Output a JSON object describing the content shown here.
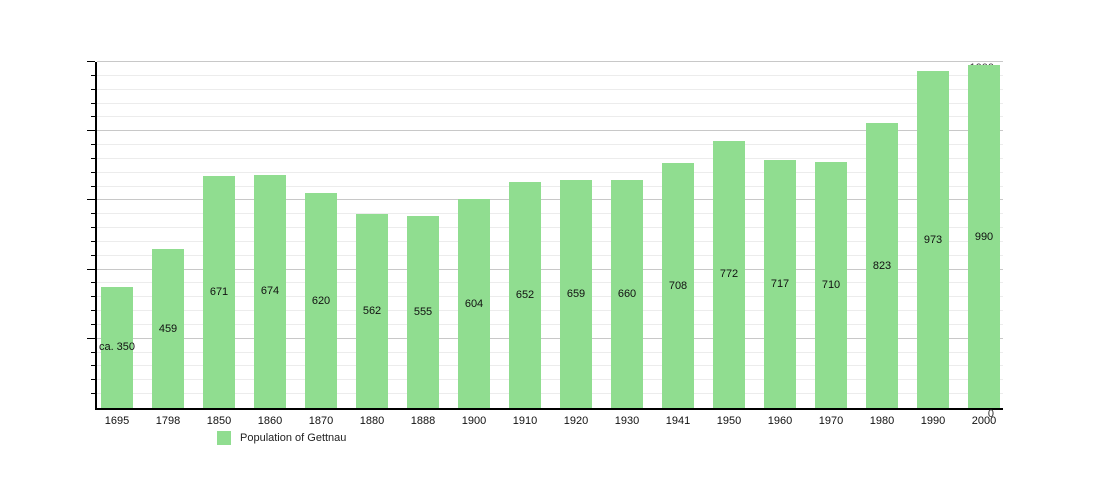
{
  "chart_data": {
    "type": "bar",
    "title": "",
    "legend": "Population of Gettnau",
    "legend_position": "bottom-left",
    "categories": [
      "1695",
      "1798",
      "1850",
      "1860",
      "1870",
      "1880",
      "1888",
      "1900",
      "1910",
      "1920",
      "1930",
      "1941",
      "1950",
      "1960",
      "1970",
      "1980",
      "1990",
      "2000"
    ],
    "values": [
      350,
      459,
      671,
      674,
      620,
      562,
      555,
      604,
      652,
      659,
      660,
      708,
      772,
      717,
      710,
      823,
      973,
      990
    ],
    "bar_labels": [
      "ca. 350",
      "459",
      "671",
      "674",
      "620",
      "562",
      "555",
      "604",
      "652",
      "659",
      "660",
      "708",
      "772",
      "717",
      "710",
      "823",
      "973",
      "990"
    ],
    "xlabel": "",
    "ylabel": "",
    "ylim": [
      0,
      1000
    ],
    "y_major_ticks": [
      0,
      200,
      400,
      600,
      800,
      1000
    ],
    "y_minor_step": 40,
    "grid": "horizontal",
    "colors": {
      "bar": "#90DD90",
      "major_grid": "#c8c8c8",
      "minor_grid": "#ececec",
      "axis": "#000000",
      "text": "#111111"
    }
  }
}
